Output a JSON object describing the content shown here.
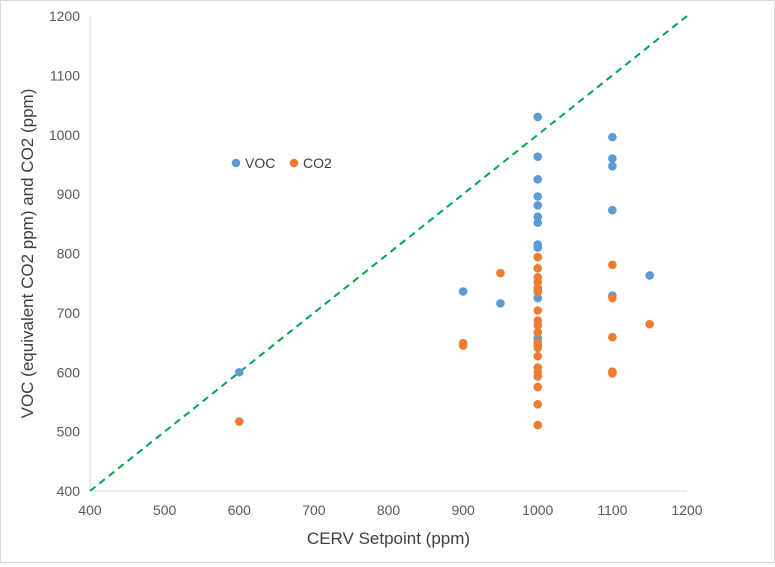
{
  "chart_data": {
    "type": "scatter",
    "title": "",
    "xlabel": "CERV Setpoint (ppm)",
    "ylabel": "VOC (equivalent CO2 ppm) and CO2 (ppm)",
    "xlim": [
      400,
      1200
    ],
    "ylim": [
      400,
      1200
    ],
    "xticks": [
      400,
      500,
      600,
      700,
      800,
      900,
      1000,
      1100,
      1200
    ],
    "yticks": [
      400,
      500,
      600,
      700,
      800,
      900,
      1000,
      1100,
      1200
    ],
    "grid": "none",
    "legend_position": "top-left",
    "reference_line": {
      "style": "dashed",
      "color": "#00a650",
      "from": [
        400,
        400
      ],
      "to": [
        1200,
        1200
      ]
    },
    "series": [
      {
        "name": "VOC",
        "color": "#5b9bd5",
        "points": [
          [
            600,
            600
          ],
          [
            900,
            736
          ],
          [
            950,
            716
          ],
          [
            1000,
            1030
          ],
          [
            1000,
            963
          ],
          [
            1000,
            925
          ],
          [
            1000,
            896
          ],
          [
            1000,
            881
          ],
          [
            1000,
            862
          ],
          [
            1000,
            852
          ],
          [
            1000,
            815
          ],
          [
            1000,
            810
          ],
          [
            1000,
            740
          ],
          [
            1000,
            725
          ],
          [
            1000,
            657
          ],
          [
            1000,
            645
          ],
          [
            1100,
            996
          ],
          [
            1100,
            960
          ],
          [
            1100,
            947
          ],
          [
            1100,
            873
          ],
          [
            1100,
            729
          ],
          [
            1150,
            763
          ]
        ]
      },
      {
        "name": "CO2",
        "color": "#ed7d31",
        "points": [
          [
            600,
            517
          ],
          [
            900,
            649
          ],
          [
            900,
            645
          ],
          [
            950,
            767
          ],
          [
            1000,
            794
          ],
          [
            1000,
            775
          ],
          [
            1000,
            760
          ],
          [
            1000,
            752
          ],
          [
            1000,
            742
          ],
          [
            1000,
            735
          ],
          [
            1000,
            704
          ],
          [
            1000,
            687
          ],
          [
            1000,
            679
          ],
          [
            1000,
            667
          ],
          [
            1000,
            650
          ],
          [
            1000,
            641
          ],
          [
            1000,
            627
          ],
          [
            1000,
            608
          ],
          [
            1000,
            600
          ],
          [
            1000,
            593
          ],
          [
            1000,
            575
          ],
          [
            1000,
            546
          ],
          [
            1000,
            511
          ],
          [
            1100,
            781
          ],
          [
            1100,
            725
          ],
          [
            1100,
            659
          ],
          [
            1100,
            601
          ],
          [
            1100,
            598
          ],
          [
            1150,
            681
          ]
        ]
      }
    ]
  }
}
